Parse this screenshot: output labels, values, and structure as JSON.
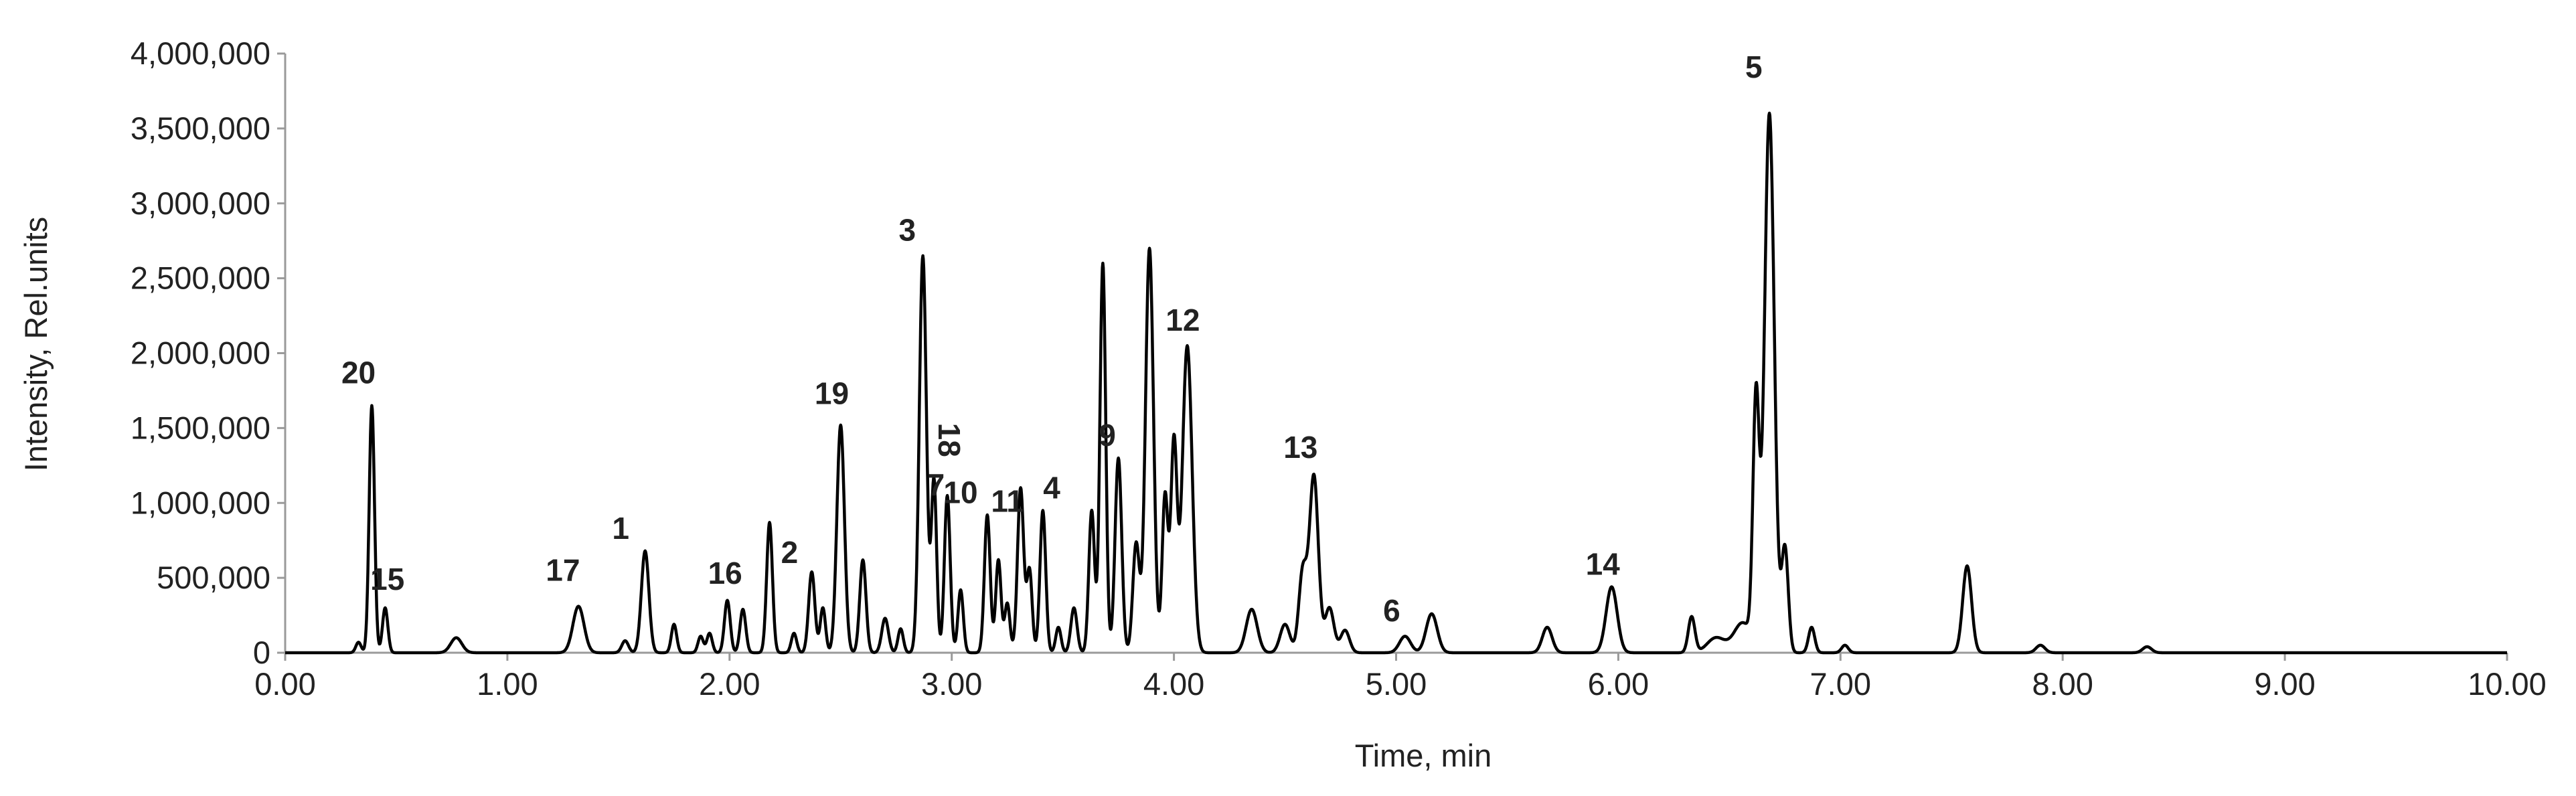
{
  "chart_data": {
    "type": "line",
    "title": "",
    "xlabel": "Time, min",
    "ylabel": "Intensity, Rel.units",
    "xlim": [
      0,
      10
    ],
    "ylim": [
      0,
      4000000
    ],
    "x_ticks": [
      0,
      1,
      2,
      3,
      4,
      5,
      6,
      7,
      8,
      9,
      10
    ],
    "x_tick_labels": [
      "0.00",
      "1.00",
      "2.00",
      "3.00",
      "4.00",
      "5.00",
      "6.00",
      "7.00",
      "8.00",
      "9.00",
      "10.00"
    ],
    "y_ticks": [
      0,
      500000,
      1000000,
      1500000,
      2000000,
      2500000,
      3000000,
      3500000,
      4000000
    ],
    "y_tick_labels": [
      "0",
      "500,000",
      "1,000,000",
      "1,500,000",
      "2,000,000",
      "2,500,000",
      "3,000,000",
      "3,500,000",
      "4,000,000"
    ],
    "grid": false,
    "legend": "none",
    "line_color": "#000000",
    "series": [
      {
        "values": [
          [
            0.33,
            70000,
            0.012
          ],
          [
            0.39,
            1650000,
            0.012
          ],
          [
            0.45,
            300000,
            0.012
          ],
          [
            0.77,
            100000,
            0.025
          ],
          [
            1.32,
            310000,
            0.025
          ],
          [
            1.53,
            80000,
            0.015
          ],
          [
            1.62,
            680000,
            0.017
          ],
          [
            1.75,
            190000,
            0.012
          ],
          [
            1.87,
            110000,
            0.012
          ],
          [
            1.91,
            130000,
            0.012
          ],
          [
            1.99,
            350000,
            0.013
          ],
          [
            2.06,
            290000,
            0.013
          ],
          [
            2.18,
            870000,
            0.013
          ],
          [
            2.29,
            130000,
            0.012
          ],
          [
            2.37,
            540000,
            0.014
          ],
          [
            2.42,
            300000,
            0.012
          ],
          [
            2.5,
            1520000,
            0.017
          ],
          [
            2.6,
            620000,
            0.014
          ],
          [
            2.7,
            230000,
            0.015
          ],
          [
            2.77,
            160000,
            0.012
          ],
          [
            2.87,
            2650000,
            0.016
          ],
          [
            2.92,
            1150000,
            0.012
          ],
          [
            2.98,
            1050000,
            0.013
          ],
          [
            3.04,
            420000,
            0.012
          ],
          [
            3.16,
            920000,
            0.013
          ],
          [
            3.21,
            620000,
            0.012
          ],
          [
            3.25,
            330000,
            0.012
          ],
          [
            3.31,
            1100000,
            0.014
          ],
          [
            3.35,
            550000,
            0.012
          ],
          [
            3.41,
            950000,
            0.013
          ],
          [
            3.48,
            170000,
            0.012
          ],
          [
            3.55,
            300000,
            0.014
          ],
          [
            3.63,
            950000,
            0.013
          ],
          [
            3.68,
            2600000,
            0.013
          ],
          [
            3.75,
            1300000,
            0.015
          ],
          [
            3.83,
            730000,
            0.015
          ],
          [
            3.89,
            2700000,
            0.018
          ],
          [
            3.96,
            1050000,
            0.013
          ],
          [
            4.0,
            1400000,
            0.014
          ],
          [
            4.06,
            2050000,
            0.022
          ],
          [
            4.35,
            290000,
            0.025
          ],
          [
            4.5,
            190000,
            0.022
          ],
          [
            4.58,
            540000,
            0.018
          ],
          [
            4.63,
            1180000,
            0.02
          ],
          [
            4.7,
            300000,
            0.02
          ],
          [
            4.77,
            150000,
            0.02
          ],
          [
            5.04,
            110000,
            0.025
          ],
          [
            5.16,
            260000,
            0.025
          ],
          [
            5.68,
            170000,
            0.022
          ],
          [
            5.97,
            440000,
            0.025
          ],
          [
            6.33,
            240000,
            0.015
          ],
          [
            6.44,
            100000,
            0.04
          ],
          [
            6.56,
            200000,
            0.04
          ],
          [
            6.62,
            1650000,
            0.014
          ],
          [
            6.68,
            3600000,
            0.022
          ],
          [
            6.75,
            700000,
            0.015
          ],
          [
            6.87,
            170000,
            0.014
          ],
          [
            7.02,
            50000,
            0.015
          ],
          [
            7.57,
            580000,
            0.02
          ],
          [
            7.9,
            50000,
            0.02
          ],
          [
            8.38,
            40000,
            0.02
          ]
        ]
      }
    ],
    "annotations": [
      {
        "text": "20",
        "x": 0.33,
        "y": 1800000
      },
      {
        "text": "15",
        "x": 0.46,
        "y": 420000
      },
      {
        "text": "17",
        "x": 1.25,
        "y": 480000
      },
      {
        "text": "1",
        "x": 1.51,
        "y": 760000
      },
      {
        "text": "16",
        "x": 1.98,
        "y": 460000
      },
      {
        "text": "2",
        "x": 2.27,
        "y": 600000
      },
      {
        "text": "19",
        "x": 2.46,
        "y": 1660000
      },
      {
        "text": "3",
        "x": 2.8,
        "y": 2750000
      },
      {
        "text": "18",
        "x": 2.94,
        "y": 1420000,
        "rotate": 90
      },
      {
        "text": "7",
        "x": 2.93,
        "y": 1050000
      },
      {
        "text": "10",
        "x": 3.04,
        "y": 1000000
      },
      {
        "text": "11",
        "x": 3.25,
        "y": 940000
      },
      {
        "text": "4",
        "x": 3.45,
        "y": 1030000
      },
      {
        "text": "9",
        "x": 3.7,
        "y": 1380000
      },
      {
        "text": "12",
        "x": 4.04,
        "y": 2150000
      },
      {
        "text": "13",
        "x": 4.57,
        "y": 1300000
      },
      {
        "text": "6",
        "x": 4.98,
        "y": 210000
      },
      {
        "text": "14",
        "x": 5.93,
        "y": 520000
      },
      {
        "text": "5",
        "x": 6.61,
        "y": 3840000
      }
    ]
  }
}
